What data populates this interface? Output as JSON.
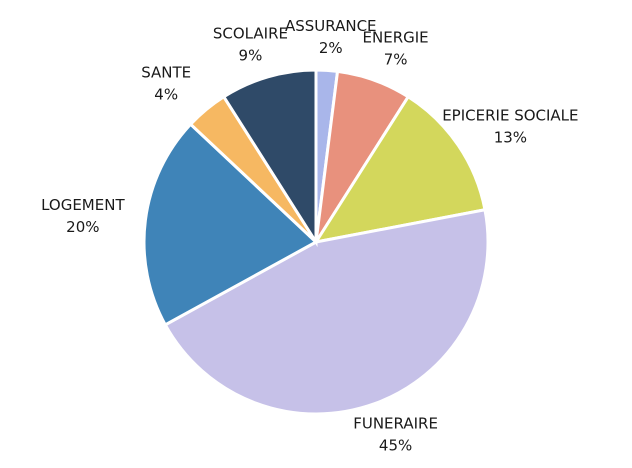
{
  "chart_data": {
    "type": "pie",
    "categories": [
      "ASSURANCE",
      "ENERGIE",
      "EPICERIE SOCIALE",
      "FUNERAIRE",
      "LOGEMENT",
      "SANTE",
      "SCOLAIRE"
    ],
    "values": [
      2,
      7,
      13,
      45,
      20,
      4,
      9
    ],
    "value_labels": [
      "2%",
      "7%",
      "13%",
      "45%",
      "20%",
      "4%",
      "9%"
    ],
    "colors": [
      "#a9b6ea",
      "#e8917d",
      "#d3d75c",
      "#c6c1e8",
      "#3f84b8",
      "#f6b862",
      "#2f4a68"
    ]
  }
}
